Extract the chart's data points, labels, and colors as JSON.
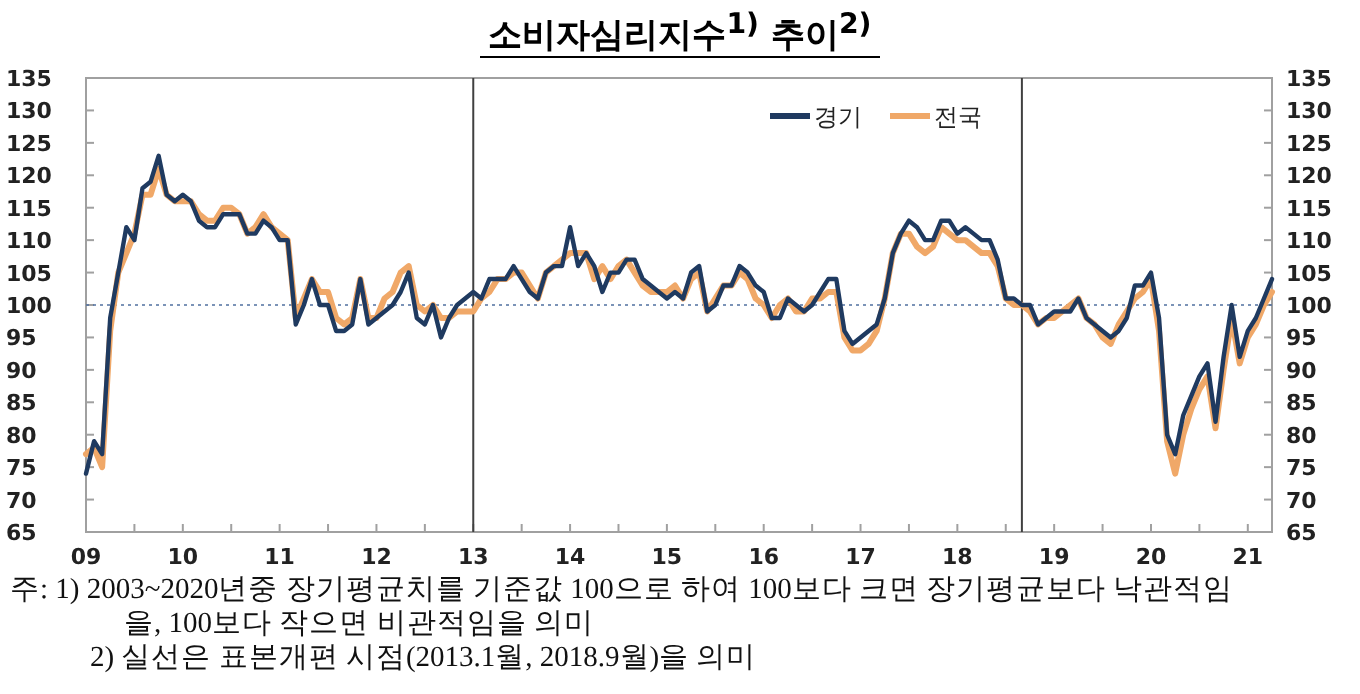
{
  "chart_data": {
    "type": "line",
    "title": "소비자심리지수$^{1)}$ 추이$^{2)}$",
    "x": [
      "2009-01",
      "2009-02",
      "2009-03",
      "2009-04",
      "2009-05",
      "2009-06",
      "2009-07",
      "2009-08",
      "2009-09",
      "2009-10",
      "2009-11",
      "2009-12",
      "2010-01",
      "2010-02",
      "2010-03",
      "2010-04",
      "2010-05",
      "2010-06",
      "2010-07",
      "2010-08",
      "2010-09",
      "2010-10",
      "2010-11",
      "2010-12",
      "2011-01",
      "2011-02",
      "2011-03",
      "2011-04",
      "2011-05",
      "2011-06",
      "2011-07",
      "2011-08",
      "2011-09",
      "2011-10",
      "2011-11",
      "2011-12",
      "2012-01",
      "2012-02",
      "2012-03",
      "2012-04",
      "2012-05",
      "2012-06",
      "2012-07",
      "2012-08",
      "2012-09",
      "2012-10",
      "2012-11",
      "2012-12",
      "2013-01",
      "2013-02",
      "2013-03",
      "2013-04",
      "2013-05",
      "2013-06",
      "2013-07",
      "2013-08",
      "2013-09",
      "2013-10",
      "2013-11",
      "2013-12",
      "2014-01",
      "2014-02",
      "2014-03",
      "2014-04",
      "2014-05",
      "2014-06",
      "2014-07",
      "2014-08",
      "2014-09",
      "2014-10",
      "2014-11",
      "2014-12",
      "2015-01",
      "2015-02",
      "2015-03",
      "2015-04",
      "2015-05",
      "2015-06",
      "2015-07",
      "2015-08",
      "2015-09",
      "2015-10",
      "2015-11",
      "2015-12",
      "2016-01",
      "2016-02",
      "2016-03",
      "2016-04",
      "2016-05",
      "2016-06",
      "2016-07",
      "2016-08",
      "2016-09",
      "2016-10",
      "2016-11",
      "2016-12",
      "2017-01",
      "2017-02",
      "2017-03",
      "2017-04",
      "2017-05",
      "2017-06",
      "2017-07",
      "2017-08",
      "2017-09",
      "2017-10",
      "2017-11",
      "2017-12",
      "2018-01",
      "2018-02",
      "2018-03",
      "2018-04",
      "2018-05",
      "2018-06",
      "2018-07",
      "2018-08",
      "2018-09",
      "2018-10",
      "2018-11",
      "2018-12",
      "2019-01",
      "2019-02",
      "2019-03",
      "2019-04",
      "2019-05",
      "2019-06",
      "2019-07",
      "2019-08",
      "2019-09",
      "2019-10",
      "2019-11",
      "2019-12",
      "2020-01",
      "2020-02",
      "2020-03",
      "2020-04",
      "2020-05",
      "2020-06",
      "2020-07",
      "2020-08",
      "2020-09",
      "2020-10",
      "2020-11",
      "2020-12",
      "2021-01",
      "2021-02",
      "2021-03",
      "2021-04"
    ],
    "series": [
      {
        "name": "경기",
        "color": "#1f3a60",
        "values": [
          74,
          79,
          77,
          98,
          105,
          112,
          110,
          118,
          119,
          123,
          117,
          116,
          117,
          116,
          113,
          112,
          112,
          114,
          114,
          114,
          111,
          111,
          113,
          112,
          110,
          110,
          97,
          100,
          104,
          100,
          100,
          96,
          96,
          97,
          104,
          97,
          98,
          99,
          100,
          102,
          105,
          98,
          97,
          100,
          95,
          98,
          100,
          101,
          102,
          101,
          104,
          104,
          104,
          106,
          104,
          102,
          101,
          105,
          106,
          106,
          112,
          106,
          108,
          106,
          102,
          105,
          105,
          107,
          107,
          104,
          103,
          102,
          101,
          102,
          101,
          105,
          106,
          99,
          100,
          103,
          103,
          106,
          105,
          103,
          102,
          98,
          98,
          101,
          100,
          99,
          100,
          102,
          104,
          104,
          96,
          94,
          95,
          96,
          97,
          101,
          108,
          111,
          113,
          112,
          110,
          110,
          113,
          113,
          111,
          112,
          111,
          110,
          110,
          107,
          101,
          101,
          100,
          100,
          97,
          98,
          99,
          99,
          99,
          101,
          98,
          97,
          96,
          95,
          96,
          98,
          103,
          103,
          105,
          98,
          80,
          77,
          83,
          86,
          89,
          91,
          82,
          92,
          100,
          92,
          96,
          98,
          101,
          104
        ]
      },
      {
        "name": "전국",
        "color": "#f0a868",
        "values": [
          77,
          78,
          75,
          96,
          105,
          108,
          111,
          117,
          117,
          121,
          117,
          116,
          116,
          116,
          114,
          113,
          113,
          115,
          115,
          114,
          111,
          112,
          114,
          112,
          111,
          110,
          98,
          101,
          104,
          102,
          102,
          98,
          97,
          98,
          104,
          98,
          98,
          101,
          102,
          105,
          106,
          100,
          99,
          100,
          98,
          98,
          99,
          99,
          99,
          101,
          102,
          104,
          104,
          105,
          105,
          103,
          101,
          105,
          106,
          107,
          108,
          108,
          108,
          104,
          106,
          104,
          106,
          107,
          105,
          103,
          102,
          102,
          102,
          103,
          101,
          104,
          105,
          99,
          101,
          103,
          103,
          105,
          104,
          101,
          100,
          98,
          100,
          101,
          99,
          99,
          101,
          101,
          102,
          102,
          95,
          93,
          93,
          94,
          96,
          101,
          108,
          111,
          111,
          109,
          108,
          109,
          112,
          111,
          110,
          110,
          109,
          108,
          108,
          106,
          101,
          100,
          100,
          99,
          97,
          98,
          98,
          99,
          100,
          101,
          98,
          97,
          95,
          94,
          97,
          99,
          101,
          102,
          104,
          96,
          79,
          74,
          80,
          84,
          87,
          89,
          81,
          90,
          98,
          91,
          95,
          97,
          100,
          102
        ]
      }
    ],
    "xlim": [
      "2009-01",
      "2021-04"
    ],
    "xticks": [
      {
        "value": "2009-01",
        "label": "09"
      },
      {
        "value": "2009-07",
        "label": null
      },
      {
        "value": "2010-01",
        "label": "10"
      },
      {
        "value": "2010-07",
        "label": null
      },
      {
        "value": "2011-01",
        "label": "11"
      },
      {
        "value": "2011-07",
        "label": null
      },
      {
        "value": "2012-01",
        "label": "12"
      },
      {
        "value": "2012-07",
        "label": null
      },
      {
        "value": "2013-01",
        "label": "13"
      },
      {
        "value": "2013-07",
        "label": null
      },
      {
        "value": "2014-01",
        "label": "14"
      },
      {
        "value": "2014-07",
        "label": null
      },
      {
        "value": "2015-01",
        "label": "15"
      },
      {
        "value": "2015-07",
        "label": null
      },
      {
        "value": "2016-01",
        "label": "16"
      },
      {
        "value": "2016-07",
        "label": null
      },
      {
        "value": "2017-01",
        "label": "17"
      },
      {
        "value": "2017-07",
        "label": null
      },
      {
        "value": "2018-01",
        "label": "18"
      },
      {
        "value": "2018-07",
        "label": null
      },
      {
        "value": "2019-01",
        "label": "19"
      },
      {
        "value": "2019-07",
        "label": null
      },
      {
        "value": "2020-01",
        "label": "20"
      },
      {
        "value": "2020-07",
        "label": null
      },
      {
        "value": "2021-01",
        "label": "21"
      }
    ],
    "ylim": [
      65,
      135
    ],
    "yticks": [
      65,
      70,
      75,
      80,
      85,
      90,
      95,
      100,
      105,
      110,
      115,
      120,
      125,
      130,
      135
    ],
    "y2lim": [
      65,
      135
    ],
    "y2ticks": [
      65,
      70,
      75,
      80,
      85,
      90,
      95,
      100,
      105,
      110,
      115,
      120,
      125,
      130,
      135
    ],
    "ref_lines": [
      {
        "axis": "y",
        "value": 100,
        "color": "#5070a0",
        "line_style": "dotted"
      },
      {
        "axis": "x",
        "value": "2013-01",
        "color": "#404040",
        "line_style": "solid"
      },
      {
        "axis": "x",
        "value": "2018-09",
        "color": "#404040",
        "line_style": "solid"
      }
    ],
    "legend": "top right",
    "grid": false,
    "marker": "none",
    "line_style": "solid",
    "annotations": [
      "주: 1) 2003~2020년중 장기평균치를 기준값 100으로 하여 100보다 크면 장기평균보다 낙관적임을, 100보다 작으면 비관적임을 의미",
      "2) 실선은 표본개편 시점(2013.1월, 2018.9월)을 의미"
    ]
  }
}
